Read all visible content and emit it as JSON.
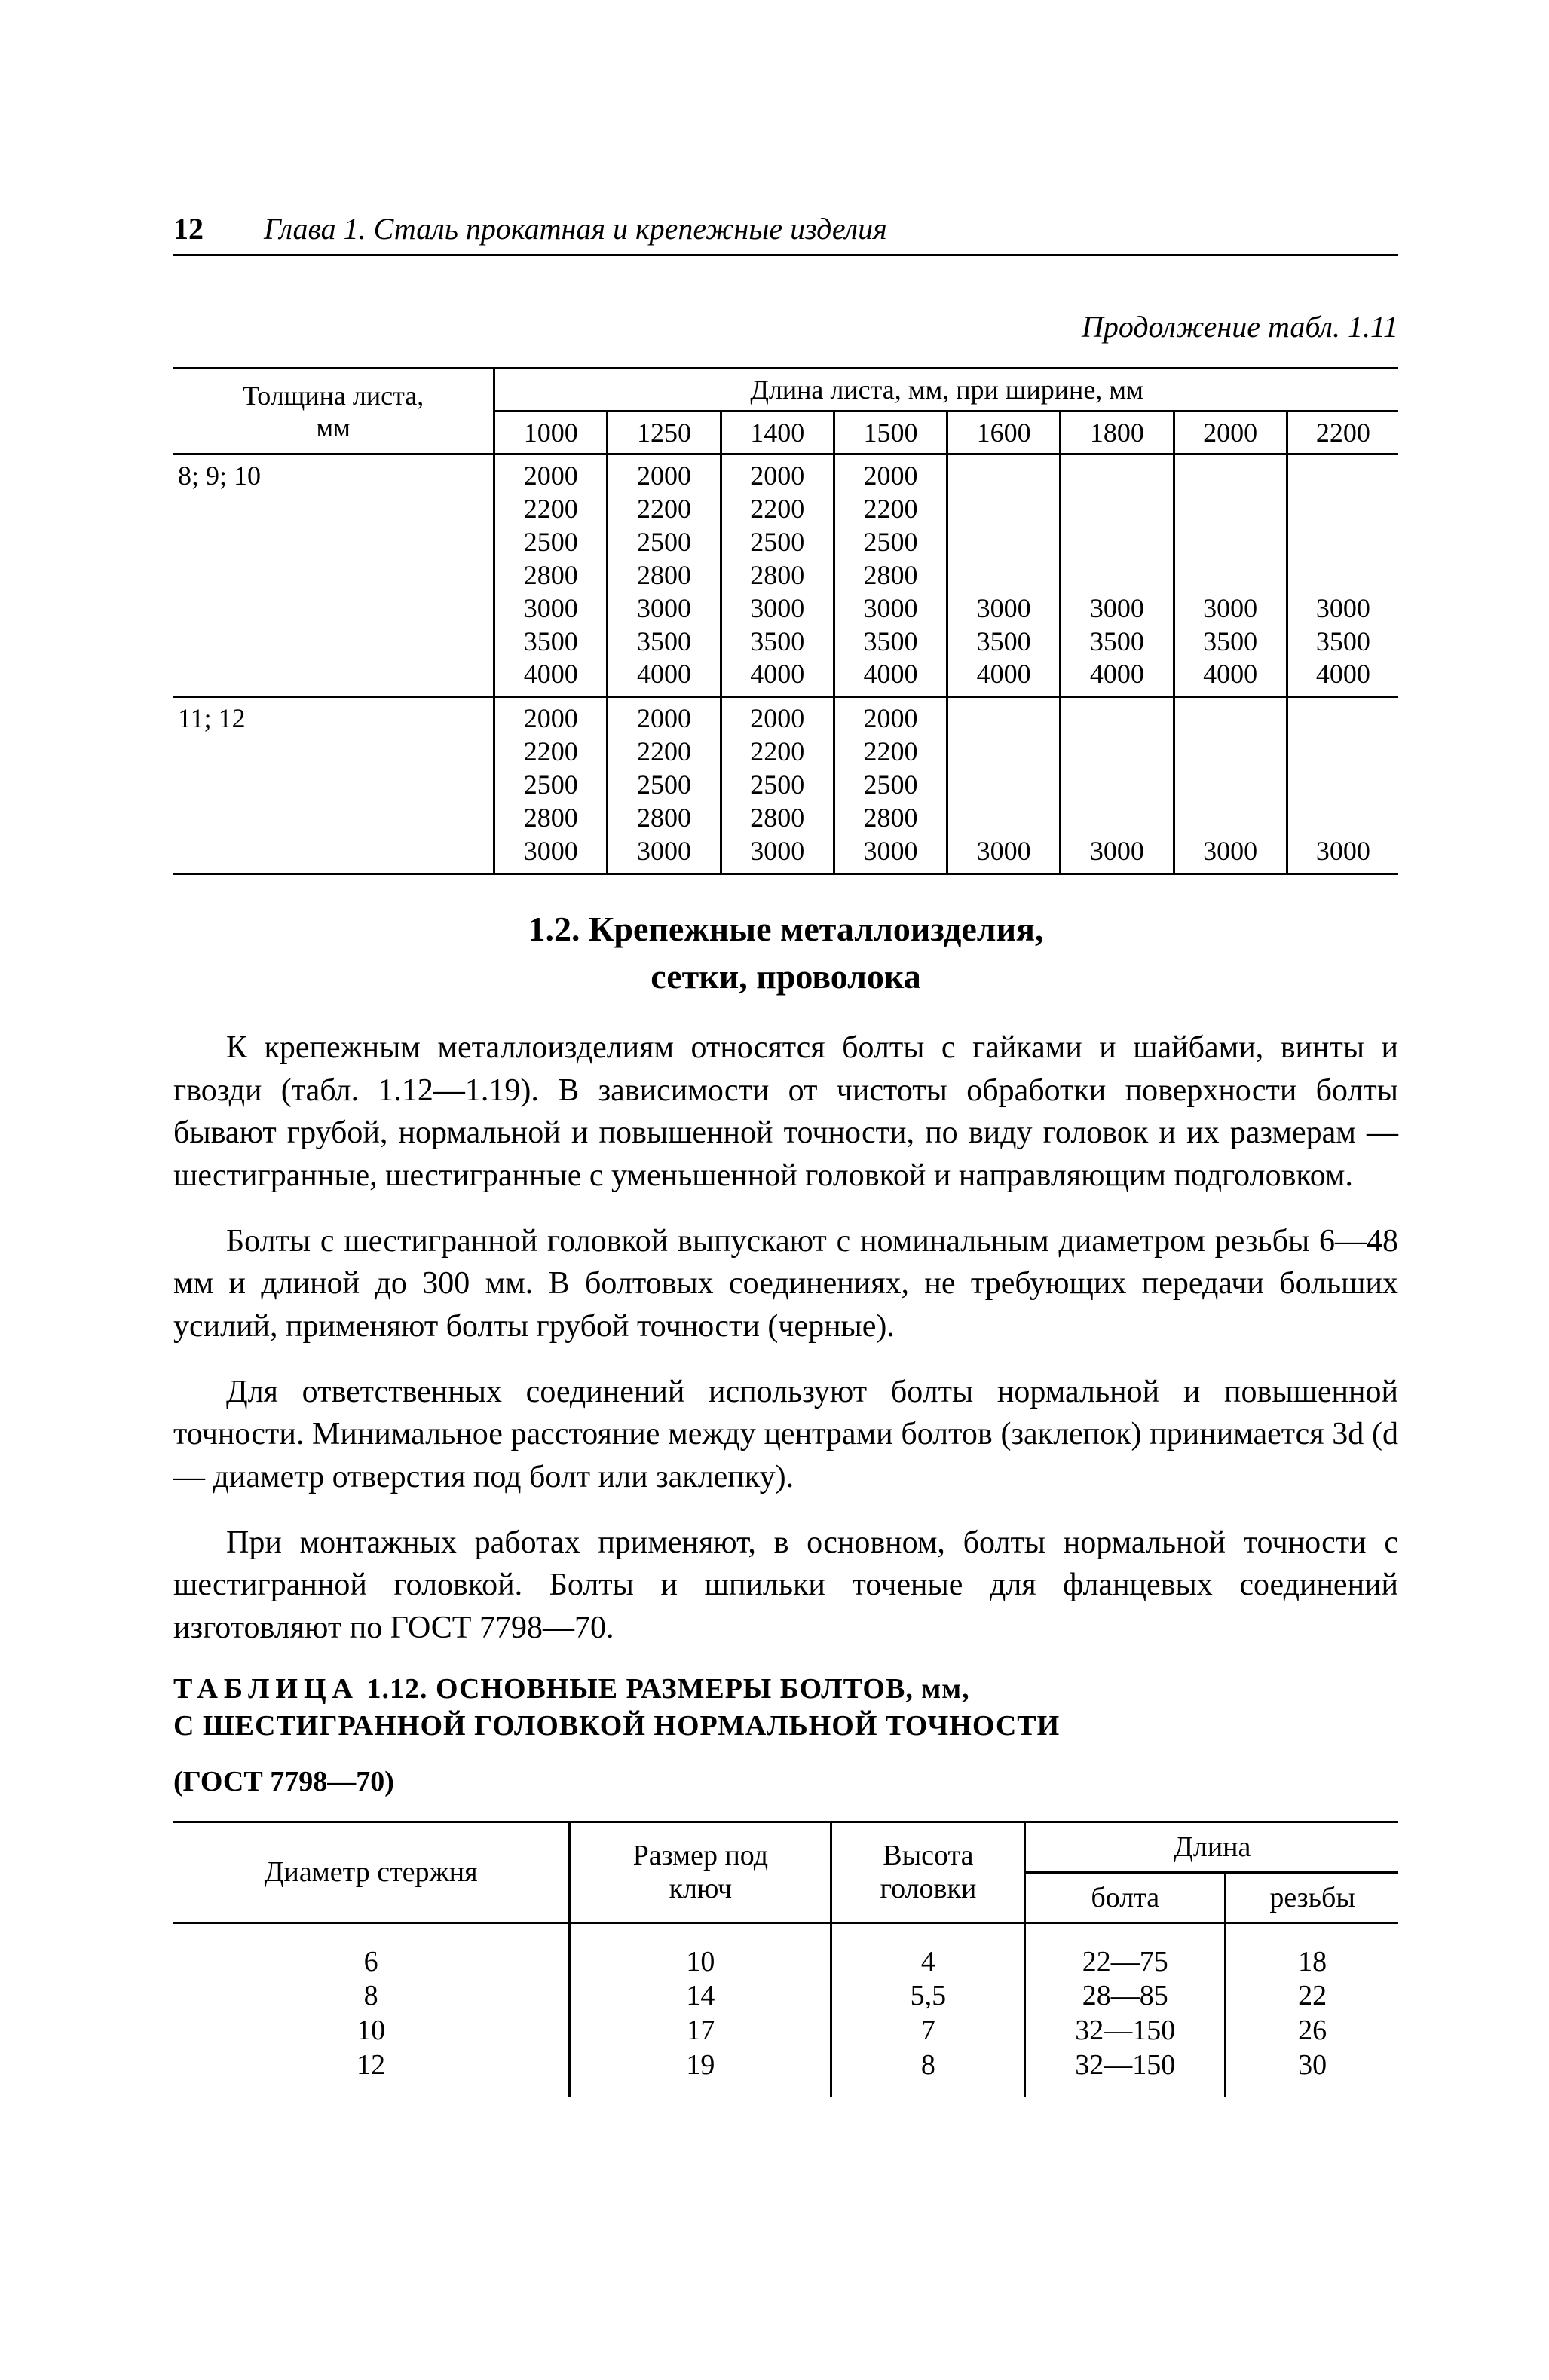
{
  "page_number": "12",
  "running_head": "Глава 1. Сталь прокатная и крепежные изделия",
  "continuation": "Продолжение табл. 1.11",
  "table1": {
    "row_header": "Толщина листа,\nмм",
    "span_header": "Длина листа, мм, при ширине, мм",
    "widths": [
      "1000",
      "1250",
      "1400",
      "1500",
      "1600",
      "1800",
      "2000",
      "2200"
    ],
    "rows": [
      {
        "label": "8; 9; 10",
        "cells": [
          "2000\n2200\n2500\n2800\n3000\n3500\n4000",
          "2000\n2200\n2500\n2800\n3000\n3500\n4000",
          "2000\n2200\n2500\n2800\n3000\n3500\n4000",
          "2000\n2200\n2500\n2800\n3000\n3500\n4000",
          "\n\n\n\n3000\n3500\n4000",
          "\n\n\n\n3000\n3500\n4000",
          "\n\n\n\n3000\n3500\n4000",
          "\n\n\n\n3000\n3500\n4000"
        ]
      },
      {
        "label": "11; 12",
        "cells": [
          "2000\n2200\n2500\n2800\n3000",
          "2000\n2200\n2500\n2800\n3000",
          "2000\n2200\n2500\n2800\n3000",
          "2000\n2200\n2500\n2800\n3000",
          "\n\n\n\n3000",
          "\n\n\n\n3000",
          "\n\n\n\n3000",
          "\n\n\n\n3000"
        ]
      }
    ]
  },
  "section_title_1": "1.2. Крепежные металлоизделия,",
  "section_title_2": "сетки, проволока",
  "paragraphs": [
    "К крепежным металлоизделиям относятся болты с гайками и шайбами, винты и гвозди (табл. 1.12—1.19). В зависимости от чистоты обработки поверхности болты бывают грубой, нормальной и повышенной точности, по виду головок и их размерам — шестигранные, шестигранные с уменьшенной головкой и направляющим подголовком.",
    "Болты с шестигранной головкой выпускают с номинальным диаметром резьбы 6—48 мм и длиной до 300 мм. В болтовых соединениях, не требующих передачи больших усилий, применяют болты грубой точности (черные).",
    "Для ответственных соединений используют болты нормальной и повышенной точности. Минимальное расстояние между центрами болтов (заклепок) принимается 3d (d — диаметр отверстия под болт или заклепку).",
    "При монтажных работах применяют, в основном, болты нормальной точности с шестигранной головкой. Болты и шпильки точеные для фланцевых соединений изготовляют по ГОСТ 7798—70."
  ],
  "table2_caption_prefix": "ТАБЛИЦА",
  "table2_caption_rest": " 1.12. ОСНОВНЫЕ РАЗМЕРЫ БОЛТОВ, мм,",
  "table2_caption_line2": "С ШЕСТИГРАННОЙ ГОЛОВКОЙ НОРМАЛЬНОЙ ТОЧНОСТИ",
  "table2_caption_line3": "(ГОСТ 7798—70)",
  "table2": {
    "headers": {
      "c1": "Диаметр стержня",
      "c2": "Размер под\nключ",
      "c3": "Высота\nголовки",
      "c4": "Длина",
      "c4a": "болта",
      "c4b": "резьбы"
    },
    "rows": {
      "c1": "6\n8\n10\n12",
      "c2": "10\n14\n17\n19",
      "c3": "4\n5,5\n7\n8",
      "c4a": "22—75\n28—85\n32—150\n32—150",
      "c4b": "18\n22\n26\n30"
    }
  }
}
